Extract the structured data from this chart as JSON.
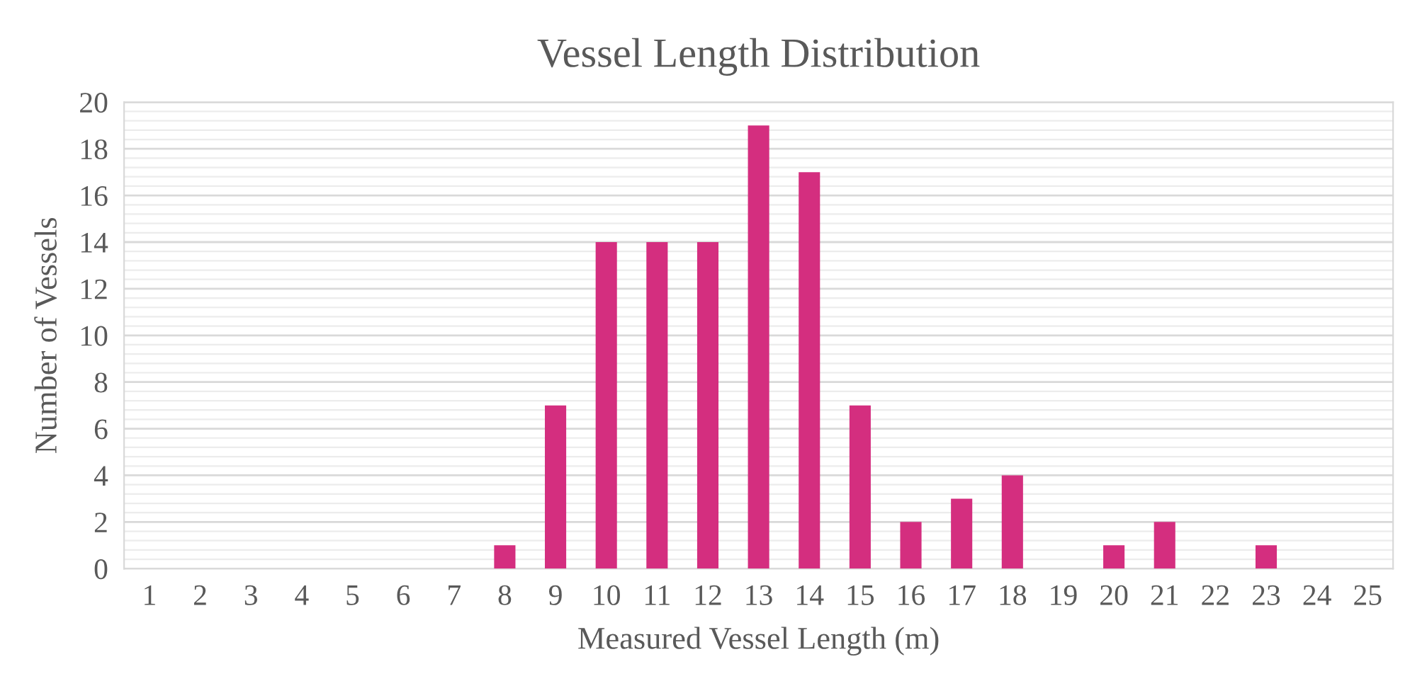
{
  "chart_data": {
    "type": "bar",
    "title": "Vessel Length Distribution",
    "xlabel": "Measured Vessel Length (m)",
    "ylabel": "Number of Vessels",
    "categories": [
      "1",
      "2",
      "3",
      "4",
      "5",
      "6",
      "7",
      "8",
      "9",
      "10",
      "11",
      "12",
      "13",
      "14",
      "15",
      "16",
      "17",
      "18",
      "19",
      "20",
      "21",
      "22",
      "23",
      "24",
      "25"
    ],
    "values": [
      0,
      0,
      0,
      0,
      0,
      0,
      0,
      1,
      7,
      14,
      14,
      14,
      19,
      17,
      7,
      2,
      3,
      4,
      0,
      1,
      2,
      0,
      1,
      0,
      0
    ],
    "color": "#d42e7f",
    "ylim": [
      0,
      20
    ],
    "yticks": [
      0,
      2,
      4,
      6,
      8,
      10,
      12,
      14,
      16,
      18,
      20
    ],
    "grid": "y"
  }
}
